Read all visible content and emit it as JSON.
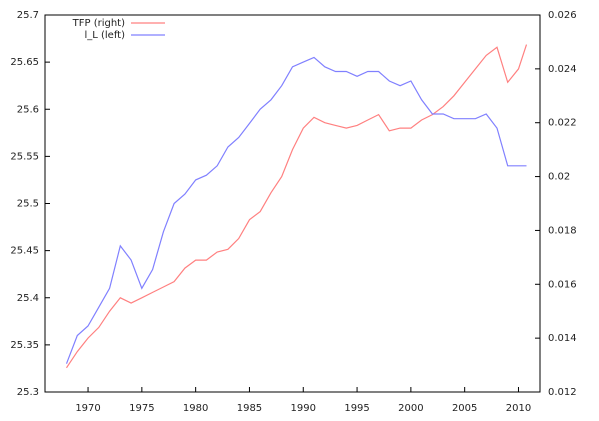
{
  "chart_data": {
    "type": "line",
    "x": [
      1968,
      1969,
      1970,
      1971,
      1972,
      1973,
      1974,
      1975,
      1976,
      1977,
      1978,
      1979,
      1980,
      1981,
      1982,
      1983,
      1984,
      1985,
      1986,
      1987,
      1988,
      1989,
      1990,
      1991,
      1992,
      1993,
      1994,
      1995,
      1996,
      1997,
      1998,
      1999,
      2000,
      2001,
      2002,
      2003,
      2004,
      2005,
      2006,
      2007,
      2008,
      2009,
      2010,
      2010.75
    ],
    "series": [
      {
        "name": "TFP (right)",
        "color": "#ff8080",
        "axis": "y2",
        "values": [
          0.0129,
          0.0135,
          0.014,
          0.0144,
          0.015,
          0.0155,
          0.0153,
          0.0155,
          0.0157,
          0.0159,
          0.0161,
          0.0166,
          0.0169,
          0.0169,
          0.0172,
          0.0173,
          0.0177,
          0.0184,
          0.0187,
          0.0194,
          0.02,
          0.021,
          0.0218,
          0.0222,
          0.022,
          0.0219,
          0.0218,
          0.0219,
          0.0221,
          0.0223,
          0.0217,
          0.0218,
          0.0218,
          0.0221,
          0.0223,
          0.0226,
          0.023,
          0.0235,
          0.024,
          0.0245,
          0.0248,
          0.0235,
          0.024,
          0.0249
        ]
      },
      {
        "name": "l_L (left)",
        "color": "#8080ff",
        "values": [
          25.33,
          25.36,
          25.37,
          25.39,
          25.41,
          25.455,
          25.44,
          25.41,
          25.43,
          25.47,
          25.5,
          25.51,
          25.525,
          25.53,
          25.54,
          25.56,
          25.57,
          25.585,
          25.6,
          25.61,
          25.625,
          25.645,
          25.65,
          25.655,
          25.645,
          25.64,
          25.64,
          25.635,
          25.64,
          25.64,
          25.63,
          25.625,
          25.63,
          25.61,
          25.595,
          25.595,
          25.59,
          25.59,
          25.59,
          25.595,
          25.58,
          25.54,
          25.54,
          25.54
        ]
      }
    ],
    "xlim": [
      1966,
      2012
    ],
    "xticks": [
      1970,
      1975,
      1980,
      1985,
      1990,
      1995,
      2000,
      2005,
      2010
    ],
    "ylim": [
      25.3,
      25.7
    ],
    "yticks": [
      25.3,
      25.35,
      25.4,
      25.45,
      25.5,
      25.55,
      25.6,
      25.65,
      25.7
    ],
    "y2lim": [
      0.012,
      0.026
    ],
    "y2ticks": [
      0.012,
      0.014,
      0.016,
      0.018,
      0.02,
      0.022,
      0.024,
      0.026
    ],
    "legend": "top-left"
  }
}
